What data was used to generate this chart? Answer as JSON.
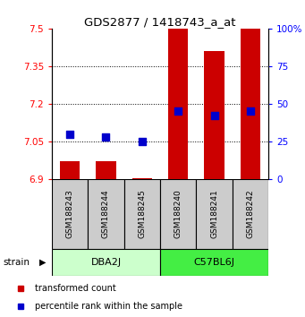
{
  "title": "GDS2877 / 1418743_a_at",
  "samples": [
    "GSM188243",
    "GSM188244",
    "GSM188245",
    "GSM188240",
    "GSM188241",
    "GSM188242"
  ],
  "group_names": [
    "DBA2J",
    "C57BL6J"
  ],
  "group_colors_light": [
    "#ccffcc",
    "#66ee66"
  ],
  "transformed_count": [
    6.972,
    6.972,
    6.905,
    7.5,
    7.41,
    7.5
  ],
  "percentile_rank": [
    30,
    28,
    25,
    45,
    42,
    45
  ],
  "ylim_left": [
    6.9,
    7.5
  ],
  "ylim_right": [
    0,
    100
  ],
  "yticks_left": [
    6.9,
    7.05,
    7.2,
    7.35,
    7.5
  ],
  "yticks_right": [
    0,
    25,
    50,
    75,
    100
  ],
  "bar_bottom": 6.9,
  "bar_color": "#cc0000",
  "dot_color": "#0000cc",
  "bar_width": 0.55,
  "dot_size": 40,
  "sample_box_color": "#cccccc",
  "strain_label": "strain",
  "legend_red": "transformed count",
  "legend_blue": "percentile rank within the sample"
}
